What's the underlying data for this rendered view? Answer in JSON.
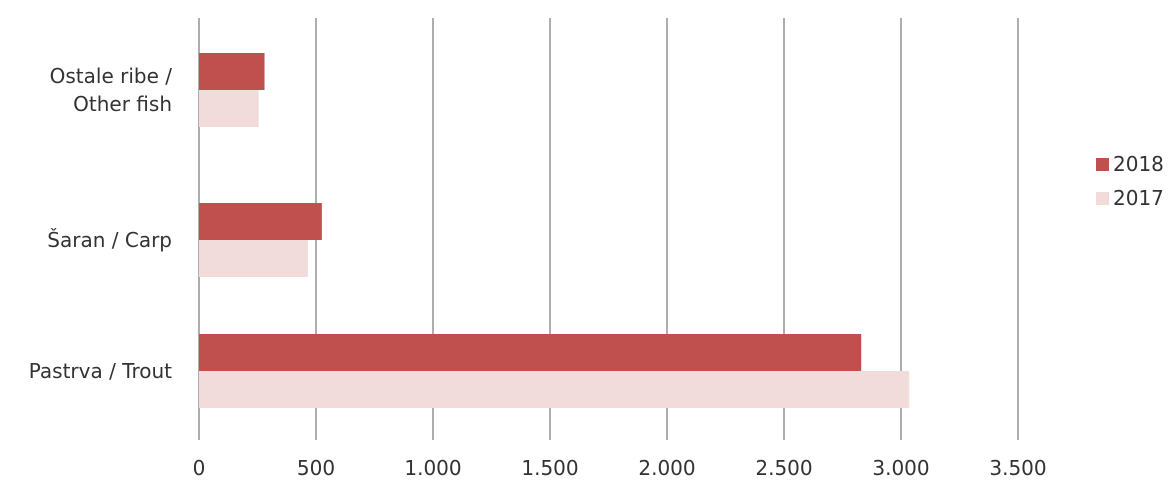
{
  "chart_data": {
    "type": "bar",
    "orientation": "horizontal",
    "categories": [
      "Ostale ribe / Other fish",
      "Šaran / Carp",
      "Pastrva / Trout"
    ],
    "category_lines": [
      [
        "Ostale ribe /",
        "Other fish"
      ],
      [
        "Šaran / Carp"
      ],
      [
        "Pastrva / Trout"
      ]
    ],
    "series": [
      {
        "name": "2018",
        "color": "#c0504d",
        "values": [
          280,
          525,
          2830
        ]
      },
      {
        "name": "2017",
        "color": "#f2dcdb",
        "values": [
          255,
          465,
          3035
        ]
      }
    ],
    "xlim": [
      0,
      3500
    ],
    "xticks": [
      0,
      500,
      1000,
      1500,
      2000,
      2500,
      3000,
      3500
    ],
    "xtick_labels": [
      "0",
      "500",
      "1.000",
      "1.500",
      "2.000",
      "2.500",
      "3.000",
      "3.500"
    ],
    "grid": "vertical",
    "legend_position": "right"
  }
}
